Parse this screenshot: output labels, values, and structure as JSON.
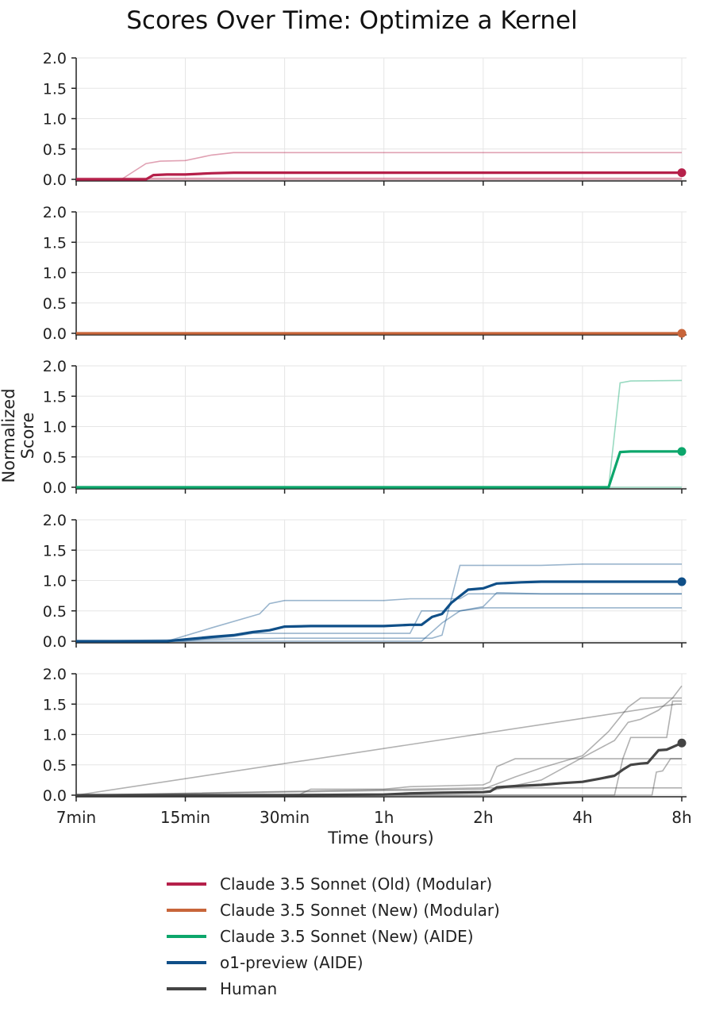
{
  "chart_data": {
    "type": "line",
    "title": "Scores Over Time: Optimize a Kernel",
    "xlabel": "Time (hours)",
    "ylabel": "Normalized Score",
    "x_scale": "log",
    "x_ticks": [
      {
        "value": 0.1167,
        "label": "7min"
      },
      {
        "value": 0.25,
        "label": "15min"
      },
      {
        "value": 0.5,
        "label": "30min"
      },
      {
        "value": 1,
        "label": "1h"
      },
      {
        "value": 2,
        "label": "2h"
      },
      {
        "value": 4,
        "label": "4h"
      },
      {
        "value": 8,
        "label": "8h"
      }
    ],
    "xlim": [
      0.1167,
      8
    ],
    "ylim": [
      0,
      2
    ],
    "y_ticks": [
      0.0,
      0.5,
      1.0,
      1.5,
      2.0
    ],
    "y_tick_labels": [
      "0.0",
      "0.5",
      "1.0",
      "1.5",
      "2.0"
    ],
    "grid": true,
    "legend_position": "bottom-center",
    "panels": [
      {
        "name": "Claude 3.5 Sonnet (Old) (Modular)",
        "color": "#b5204a",
        "mean": {
          "x": [
            0.1167,
            0.16,
            0.19,
            0.2,
            0.22,
            0.25,
            0.3,
            0.35,
            0.5,
            1,
            2,
            4,
            8
          ],
          "y": [
            0,
            0,
            0,
            0.07,
            0.08,
            0.08,
            0.1,
            0.11,
            0.11,
            0.11,
            0.11,
            0.11,
            0.11
          ]
        },
        "runs": [
          {
            "x": [
              0.1167,
              0.16,
              0.19,
              0.21,
              0.25,
              0.3,
              0.35,
              0.5,
              1,
              2,
              4,
              8
            ],
            "y": [
              0,
              0,
              0.26,
              0.3,
              0.31,
              0.4,
              0.44,
              0.44,
              0.44,
              0.44,
              0.44,
              0.44
            ]
          },
          {
            "x": [
              0.1167,
              8
            ],
            "y": [
              0,
              0
            ]
          },
          {
            "x": [
              0.1167,
              8
            ],
            "y": [
              0.02,
              0.02
            ]
          }
        ]
      },
      {
        "name": "Claude 3.5 Sonnet (New) (Modular)",
        "color": "#c8653a",
        "mean": {
          "x": [
            0.1167,
            8
          ],
          "y": [
            0,
            0
          ]
        },
        "runs": [
          {
            "x": [
              0.1167,
              8
            ],
            "y": [
              0,
              0
            ]
          }
        ]
      },
      {
        "name": "Claude 3.5 Sonnet (New) (AIDE)",
        "color": "#0ca66b",
        "mean": {
          "x": [
            0.1167,
            1,
            2,
            4,
            4.8,
            5.2,
            5.6,
            8
          ],
          "y": [
            0,
            0,
            0,
            0,
            0,
            0.58,
            0.59,
            0.59
          ]
        },
        "runs": [
          {
            "x": [
              0.1167,
              1,
              2,
              4,
              4.8,
              5.2,
              5.6,
              8
            ],
            "y": [
              0,
              0,
              0,
              0,
              0,
              1.72,
              1.75,
              1.76
            ]
          },
          {
            "x": [
              0.1167,
              8
            ],
            "y": [
              0,
              0
            ]
          }
        ]
      },
      {
        "name": "o1-preview (AIDE)",
        "color": "#0f4f88",
        "mean": {
          "x": [
            0.1167,
            0.22,
            0.25,
            0.3,
            0.35,
            0.4,
            0.45,
            0.5,
            0.6,
            0.8,
            1,
            1.2,
            1.3,
            1.4,
            1.5,
            1.6,
            1.8,
            2,
            2.2,
            2.6,
            3,
            4,
            6,
            8
          ],
          "y": [
            0,
            0,
            0.03,
            0.07,
            0.1,
            0.15,
            0.18,
            0.24,
            0.25,
            0.25,
            0.25,
            0.27,
            0.27,
            0.4,
            0.45,
            0.63,
            0.85,
            0.87,
            0.95,
            0.97,
            0.98,
            0.98,
            0.98,
            0.98
          ]
        },
        "runs": [
          {
            "x": [
              0.1167,
              0.22,
              0.3,
              0.42,
              0.45,
              0.5,
              0.6,
              1,
              1.2,
              1.4,
              1.7,
              1.8,
              3,
              4,
              6,
              8
            ],
            "y": [
              0,
              0,
              0.22,
              0.45,
              0.62,
              0.67,
              0.67,
              0.67,
              0.7,
              0.7,
              0.7,
              0.78,
              0.78,
              0.78,
              0.78,
              0.78
            ]
          },
          {
            "x": [
              0.1167,
              0.25,
              0.3,
              0.35,
              0.4,
              0.6,
              1,
              1.2,
              1.3,
              1.5,
              1.7,
              2,
              3,
              4,
              6,
              8
            ],
            "y": [
              0,
              0,
              0.05,
              0.08,
              0.13,
              0.13,
              0.13,
              0.13,
              0.5,
              0.5,
              0.5,
              0.55,
              0.55,
              0.55,
              0.55,
              0.55
            ]
          },
          {
            "x": [
              0.1167,
              0.5,
              1,
              1.3,
              1.4,
              1.5,
              1.7,
              2,
              3,
              4,
              6,
              8
            ],
            "y": [
              0,
              0.05,
              0.05,
              0.05,
              0.05,
              0.1,
              1.25,
              1.25,
              1.25,
              1.27,
              1.27,
              1.27
            ]
          },
          {
            "x": [
              0.1167,
              1,
              1.3,
              1.5,
              1.7,
              2,
              2.2,
              3,
              8
            ],
            "y": [
              0,
              0,
              0,
              0.3,
              0.5,
              0.57,
              0.8,
              0.78,
              0.78
            ]
          }
        ]
      },
      {
        "name": "Human",
        "color": "#444444",
        "mean": {
          "x": [
            0.1167,
            0.5,
            1,
            1.2,
            1.5,
            2,
            2.1,
            2.2,
            2.5,
            3,
            3.5,
            4,
            4.5,
            5,
            5.3,
            5.6,
            6,
            6.3,
            6.8,
            7.2,
            7.7,
            8
          ],
          "y": [
            0,
            0,
            0.01,
            0.03,
            0.04,
            0.05,
            0.06,
            0.13,
            0.15,
            0.17,
            0.2,
            0.22,
            0.27,
            0.32,
            0.42,
            0.5,
            0.52,
            0.53,
            0.74,
            0.75,
            0.82,
            0.86
          ]
        },
        "runs": [
          {
            "x": [
              0.1167,
              0.55,
              0.6,
              1,
              1.2,
              2,
              2.1,
              2.2,
              2.5,
              8
            ],
            "y": [
              0,
              0,
              0.1,
              0.1,
              0.14,
              0.17,
              0.22,
              0.47,
              0.6,
              0.6
            ]
          },
          {
            "x": [
              0.1167,
              2,
              2.5,
              3,
              4,
              4.8,
              5.5,
              6,
              8
            ],
            "y": [
              0,
              0.1,
              0.3,
              0.45,
              0.65,
              1.05,
              1.45,
              1.6,
              1.6
            ]
          },
          {
            "x": [
              0.1167,
              1,
              2,
              3,
              4,
              5,
              5.5,
              6,
              6.8,
              7.5,
              8
            ],
            "y": [
              0,
              0.02,
              0.05,
              0.25,
              0.62,
              0.9,
              1.2,
              1.25,
              1.4,
              1.6,
              1.8
            ]
          },
          {
            "x": [
              0.1167,
              5,
              5.3,
              5.6,
              7.2,
              7.5,
              8
            ],
            "y": [
              0,
              0,
              0.6,
              0.95,
              0.95,
              1.55,
              1.55
            ]
          },
          {
            "x": [
              0.1167,
              6.5,
              6.7,
              7,
              7.4,
              8
            ],
            "y": [
              0,
              0,
              0.38,
              0.4,
              0.6,
              0.6
            ]
          },
          {
            "x": [
              0.1167,
              2,
              8
            ],
            "y": [
              0,
              0.12,
              0.12
            ]
          },
          {
            "x": [
              0.1167,
              7.7,
              8
            ],
            "y": [
              0,
              1.5,
              1.5
            ]
          }
        ]
      }
    ]
  },
  "legend": [
    {
      "label": "Claude 3.5 Sonnet (Old) (Modular)",
      "color": "#b5204a"
    },
    {
      "label": "Claude 3.5 Sonnet (New) (Modular)",
      "color": "#c8653a"
    },
    {
      "label": "Claude 3.5 Sonnet (New) (AIDE)",
      "color": "#0ca66b"
    },
    {
      "label": "o1-preview (AIDE)",
      "color": "#0f4f88"
    },
    {
      "label": "Human",
      "color": "#444444"
    }
  ]
}
